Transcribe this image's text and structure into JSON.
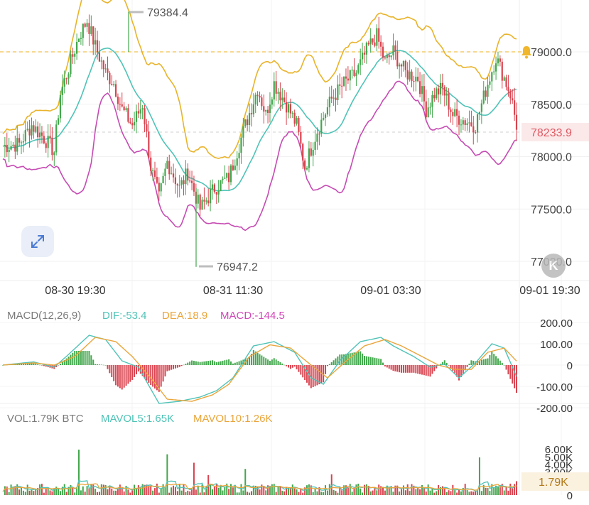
{
  "chart_data": [
    {
      "type": "candlestick",
      "panel": "price",
      "ylim": [
        76950,
        79450
      ],
      "y_ticks": [
        79000,
        78500,
        78000,
        77500,
        77000
      ],
      "y_tick_labels": [
        "79000.0",
        "78500.0",
        "78000.0",
        "77500.0",
        "77000.0"
      ],
      "x_tick_labels": [
        "08-30 19:30",
        "08-31 11:30",
        "09-01 03:30",
        "09-01 19:30"
      ],
      "high_marker": {
        "label": "79384.4",
        "value": 79384.4
      },
      "low_marker": {
        "label": "76947.2",
        "value": 76947.2
      },
      "alert_line": {
        "value": 79000,
        "color": "#f0c24a"
      },
      "last_price": {
        "label": "78233.9",
        "value": 78233.9,
        "color": "#e05a63"
      },
      "close_path": [
        [
          0,
          78100
        ],
        [
          8,
          78120
        ],
        [
          14,
          78300
        ],
        [
          20,
          78180
        ],
        [
          25,
          78050
        ],
        [
          28,
          78600
        ],
        [
          33,
          78900
        ],
        [
          37,
          79150
        ],
        [
          41,
          79300
        ],
        [
          45,
          79050
        ],
        [
          50,
          78800
        ],
        [
          54,
          78700
        ],
        [
          58,
          78450
        ],
        [
          63,
          78300
        ],
        [
          68,
          78500
        ],
        [
          72,
          77900
        ],
        [
          76,
          77600
        ],
        [
          80,
          77950
        ],
        [
          86,
          77700
        ],
        [
          90,
          77850
        ],
        [
          96,
          77500
        ],
        [
          103,
          77700
        ],
        [
          110,
          77800
        ],
        [
          118,
          78300
        ],
        [
          124,
          78650
        ],
        [
          128,
          78400
        ],
        [
          132,
          78700
        ],
        [
          138,
          78500
        ],
        [
          143,
          78300
        ],
        [
          147,
          77900
        ],
        [
          153,
          78250
        ],
        [
          160,
          78550
        ],
        [
          166,
          78700
        ],
        [
          172,
          78800
        ],
        [
          178,
          79050
        ],
        [
          182,
          79150
        ],
        [
          186,
          78900
        ],
        [
          190,
          79000
        ],
        [
          196,
          78800
        ],
        [
          202,
          78750
        ],
        [
          206,
          78450
        ],
        [
          210,
          78600
        ],
        [
          214,
          78650
        ],
        [
          219,
          78400
        ],
        [
          224,
          78350
        ],
        [
          230,
          78300
        ],
        [
          236,
          78700
        ],
        [
          240,
          78950
        ],
        [
          243,
          78800
        ],
        [
          247,
          78600
        ],
        [
          250,
          78300
        ]
      ],
      "colors": {
        "up": "#43a74d",
        "down": "#d8434f"
      }
    },
    {
      "type": "line",
      "panel": "macd",
      "title": "MACD(12,26,9)",
      "legend": [
        {
          "name": "DIF:-53.4",
          "color": "#4fc3b7"
        },
        {
          "name": "DEA:18.9",
          "color": "#eaa53a"
        },
        {
          "name": "MACD:-144.5",
          "color": "#d149b8"
        }
      ],
      "ylim": [
        -230,
        230
      ],
      "y_ticks": [
        200,
        100,
        0,
        -100,
        -200
      ],
      "y_tick_labels": [
        "200.00",
        "100.00",
        "0",
        "-100.00",
        "-200.00"
      ],
      "dif_path": [
        [
          0,
          0
        ],
        [
          15,
          15
        ],
        [
          25,
          -10
        ],
        [
          32,
          50
        ],
        [
          42,
          140
        ],
        [
          50,
          120
        ],
        [
          58,
          20
        ],
        [
          66,
          -10
        ],
        [
          76,
          -180
        ],
        [
          86,
          -170
        ],
        [
          96,
          -150
        ],
        [
          104,
          -120
        ],
        [
          112,
          -60
        ],
        [
          122,
          90
        ],
        [
          132,
          110
        ],
        [
          142,
          60
        ],
        [
          150,
          -60
        ],
        [
          156,
          -90
        ],
        [
          164,
          20
        ],
        [
          174,
          110
        ],
        [
          184,
          130
        ],
        [
          190,
          90
        ],
        [
          200,
          40
        ],
        [
          208,
          -10
        ],
        [
          215,
          5
        ],
        [
          222,
          -60
        ],
        [
          230,
          10
        ],
        [
          238,
          100
        ],
        [
          244,
          80
        ],
        [
          250,
          -53.4
        ]
      ],
      "dea_path": [
        [
          0,
          0
        ],
        [
          15,
          10
        ],
        [
          25,
          0
        ],
        [
          35,
          40
        ],
        [
          45,
          130
        ],
        [
          55,
          110
        ],
        [
          63,
          40
        ],
        [
          72,
          -60
        ],
        [
          80,
          -160
        ],
        [
          92,
          -170
        ],
        [
          102,
          -140
        ],
        [
          110,
          -90
        ],
        [
          120,
          40
        ],
        [
          130,
          95
        ],
        [
          140,
          80
        ],
        [
          150,
          0
        ],
        [
          158,
          -60
        ],
        [
          166,
          10
        ],
        [
          176,
          90
        ],
        [
          186,
          120
        ],
        [
          194,
          90
        ],
        [
          204,
          40
        ],
        [
          212,
          0
        ],
        [
          220,
          -20
        ],
        [
          228,
          -20
        ],
        [
          236,
          60
        ],
        [
          244,
          80
        ],
        [
          250,
          18.9
        ]
      ],
      "hist_color_pos": "#43a74d",
      "hist_color_neg": "#d8434f",
      "last_hist": -144.5
    },
    {
      "type": "bar",
      "panel": "volume",
      "title": "VOL:1.79K BTC",
      "legend": [
        {
          "name": "MAVOL5:1.65K",
          "color": "#4fc3b7"
        },
        {
          "name": "MAVOL10:1.26K",
          "color": "#eaa53a"
        }
      ],
      "ylim": [
        0,
        6500
      ],
      "y_ticks": [
        6000,
        5000,
        4000,
        3000,
        0
      ],
      "y_tick_labels": [
        "6.00K",
        "5.00K",
        "4.00K",
        "3.00K",
        "0"
      ],
      "last_volume_label": "1.79K",
      "spikes": [
        [
          37,
          5900
        ],
        [
          80,
          5300
        ],
        [
          93,
          4200
        ],
        [
          100,
          2600
        ],
        [
          118,
          3400
        ],
        [
          160,
          2700
        ],
        [
          232,
          4900
        ],
        [
          250,
          1800
        ]
      ]
    }
  ],
  "ui": {
    "expand_icon": "expand-arrows-icon",
    "reset_icon": "reset-k-icon",
    "alert_icon": "bell-icon",
    "reset_glyph": "K"
  }
}
